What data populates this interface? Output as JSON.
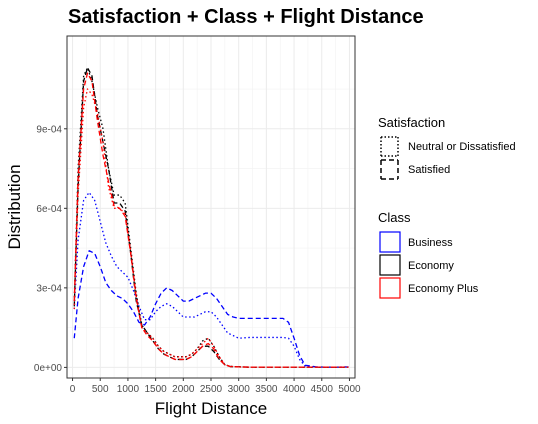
{
  "chart_data": {
    "type": "line",
    "title": "Satisfaction + Class + Flight Distance",
    "xlabel": "Flight Distance",
    "ylabel": "Distribution",
    "xlim": [
      -100,
      5100
    ],
    "ylim": [
      -4e-05,
      0.00125
    ],
    "x_ticks": [
      0,
      500,
      1000,
      1500,
      2000,
      2500,
      3000,
      3500,
      4000,
      4500,
      5000
    ],
    "x_tick_labels": [
      "0",
      "500",
      "1000",
      "1500",
      "2000",
      "2500",
      "3000",
      "3500",
      "4000",
      "4500",
      "5000"
    ],
    "y_ticks": [
      0,
      0.0003,
      0.0006,
      0.0009
    ],
    "y_tick_labels": [
      "0e+00",
      "3e-04",
      "6e-04",
      "9e-04"
    ],
    "grid": true,
    "legend_placement": "right",
    "legends": [
      {
        "title": "Satisfaction",
        "entries": [
          {
            "label": "Neutral or Dissatisfied",
            "linetype": "dotted"
          },
          {
            "label": "Satisfied",
            "linetype": "dashed"
          }
        ]
      },
      {
        "title": "Class",
        "entries": [
          {
            "label": "Business",
            "color": "#0000ff"
          },
          {
            "label": "Economy",
            "color": "#000000"
          },
          {
            "label": "Economy Plus",
            "color": "#ff0000"
          }
        ]
      }
    ],
    "series": [
      {
        "class": "Business",
        "satisfaction": "Neutral or Dissatisfied",
        "color": "#0000ff",
        "linetype": "dotted",
        "x": [
          31,
          100,
          200,
          300,
          400,
          500,
          600,
          700,
          800,
          900,
          1000,
          1100,
          1200,
          1300,
          1400,
          1500,
          1600,
          1700,
          1800,
          1900,
          2000,
          2100,
          2200,
          2300,
          2400,
          2500,
          2600,
          2700,
          2800,
          2900,
          3000,
          3200,
          3400,
          3600,
          3800,
          3900,
          4000,
          4100,
          4200,
          4400,
          4600,
          4800,
          4983
        ],
        "y": [
          0.00022,
          0.00048,
          0.00063,
          0.00066,
          0.00063,
          0.00055,
          0.00047,
          0.00042,
          0.00038,
          0.00036,
          0.00034,
          0.00029,
          0.00023,
          0.00018,
          0.00018,
          0.00021,
          0.00023,
          0.00024,
          0.00023,
          0.00021,
          0.00019,
          0.00019,
          0.00019,
          0.0002,
          0.00021,
          0.00021,
          0.00019,
          0.00016,
          0.00013,
          0.00012,
          0.00011,
          0.000113,
          0.000113,
          0.000113,
          0.000113,
          0.00011,
          8e-05,
          3e-05,
          4e-06,
          1e-06,
          1e-06,
          1e-06,
          2e-06
        ]
      },
      {
        "class": "Business",
        "satisfaction": "Satisfied",
        "color": "#0000ff",
        "linetype": "dashed",
        "x": [
          31,
          100,
          200,
          300,
          400,
          500,
          600,
          700,
          800,
          900,
          1000,
          1100,
          1200,
          1300,
          1400,
          1500,
          1600,
          1700,
          1800,
          1900,
          2000,
          2100,
          2200,
          2300,
          2400,
          2500,
          2600,
          2700,
          2800,
          2900,
          3000,
          3200,
          3400,
          3600,
          3800,
          3900,
          4000,
          4100,
          4200,
          4400,
          4600,
          4800,
          4983
        ],
        "y": [
          0.00011,
          0.00026,
          0.00038,
          0.00044,
          0.00043,
          0.00038,
          0.00032,
          0.00029,
          0.00027,
          0.00026,
          0.00024,
          0.00021,
          0.00017,
          0.00016,
          0.00019,
          0.00024,
          0.00028,
          0.0003,
          0.00029,
          0.00027,
          0.00025,
          0.00025,
          0.00026,
          0.00027,
          0.00028,
          0.00028,
          0.00026,
          0.00023,
          0.0002,
          0.00019,
          0.000185,
          0.000185,
          0.000185,
          0.000185,
          0.000185,
          0.00017,
          0.00011,
          4.5e-05,
          8e-06,
          2e-06,
          1e-06,
          1e-06,
          2e-06
        ]
      },
      {
        "class": "Economy",
        "satisfaction": "Neutral or Dissatisfied",
        "color": "#000000",
        "linetype": "dotted",
        "x": [
          31,
          100,
          200,
          270,
          350,
          450,
          550,
          650,
          750,
          850,
          950,
          1050,
          1150,
          1250,
          1350,
          1450,
          1550,
          1650,
          1750,
          1850,
          1950,
          2050,
          2150,
          2250,
          2350,
          2450,
          2550,
          2650,
          2750,
          2850,
          3000,
          3200,
          3500,
          4000,
          4500,
          4983
        ],
        "y": [
          0.00025,
          0.00075,
          0.0011,
          0.00113,
          0.00108,
          0.00098,
          0.0009,
          0.00075,
          0.00065,
          0.00065,
          0.00062,
          0.00045,
          0.00028,
          0.00016,
          0.00013,
          0.00011,
          8e-05,
          6e-05,
          5e-05,
          4e-05,
          4e-05,
          4e-05,
          5e-05,
          7e-05,
          0.0001,
          0.00011,
          8e-05,
          4e-05,
          1e-05,
          4e-06,
          2e-06,
          1e-06,
          1e-06,
          1e-06,
          1e-06,
          1e-06
        ]
      },
      {
        "class": "Economy",
        "satisfaction": "Satisfied",
        "color": "#000000",
        "linetype": "dashed",
        "x": [
          31,
          100,
          200,
          270,
          350,
          450,
          550,
          650,
          750,
          850,
          950,
          1050,
          1150,
          1250,
          1350,
          1450,
          1550,
          1650,
          1750,
          1850,
          1950,
          2050,
          2150,
          2250,
          2350,
          2450,
          2550,
          2650,
          2750,
          2850,
          3000,
          3200,
          3500,
          4000,
          4500,
          4983
        ],
        "y": [
          0.00023,
          0.00068,
          0.00108,
          0.00113,
          0.0011,
          0.00095,
          0.00085,
          0.00075,
          0.00062,
          0.00062,
          0.00059,
          0.00043,
          0.00025,
          0.00016,
          0.00013,
          0.0001,
          7e-05,
          5e-05,
          4e-05,
          3e-05,
          3e-05,
          3e-05,
          4e-05,
          6e-05,
          8e-05,
          8e-05,
          6e-05,
          3e-05,
          1e-05,
          3e-06,
          2e-06,
          1e-06,
          1e-06,
          1e-06,
          1e-06,
          1e-06
        ]
      },
      {
        "class": "Economy Plus",
        "satisfaction": "Neutral or Dissatisfied",
        "color": "#ff0000",
        "linetype": "dotted",
        "x": [
          31,
          100,
          200,
          270,
          350,
          450,
          550,
          650,
          750,
          850,
          950,
          1050,
          1150,
          1250,
          1350,
          1450,
          1550,
          1650,
          1750,
          1850,
          1950,
          2050,
          2150,
          2250,
          2350,
          2450,
          2550,
          2650,
          2750,
          2850,
          3000,
          3200,
          3500,
          4000,
          4500,
          4983
        ],
        "y": [
          0.00022,
          0.00065,
          0.00098,
          0.00105,
          0.00103,
          0.00096,
          0.00085,
          0.00068,
          0.0006,
          0.0006,
          0.00058,
          0.00044,
          0.00027,
          0.00015,
          0.00013,
          0.00011,
          8e-05,
          6e-05,
          5e-05,
          4e-05,
          4e-05,
          4e-05,
          5e-05,
          7e-05,
          9e-05,
          0.00011,
          8e-05,
          4e-05,
          1e-05,
          4e-06,
          2e-06,
          1e-06,
          1e-06,
          1e-06,
          1e-06,
          1e-06
        ]
      },
      {
        "class": "Economy Plus",
        "satisfaction": "Satisfied",
        "color": "#ff0000",
        "linetype": "dashed",
        "x": [
          31,
          100,
          200,
          270,
          350,
          450,
          550,
          650,
          750,
          850,
          950,
          1050,
          1150,
          1250,
          1350,
          1450,
          1550,
          1650,
          1750,
          1850,
          1950,
          2050,
          2150,
          2250,
          2350,
          2450,
          2550,
          2650,
          2750,
          2850,
          3000,
          3200,
          3500,
          4000,
          4500,
          4983
        ],
        "y": [
          0.00025,
          0.00072,
          0.00105,
          0.00111,
          0.00108,
          0.00093,
          0.0008,
          0.0007,
          0.00061,
          0.0006,
          0.00057,
          0.00043,
          0.00026,
          0.00015,
          0.00012,
          0.0001,
          7e-05,
          5e-05,
          4e-05,
          3e-05,
          3e-05,
          3e-05,
          4e-05,
          6e-05,
          8e-05,
          9e-05,
          7e-05,
          3e-05,
          1e-05,
          3e-06,
          2e-06,
          1e-06,
          1e-06,
          1e-06,
          1e-06,
          1e-06
        ]
      }
    ]
  }
}
